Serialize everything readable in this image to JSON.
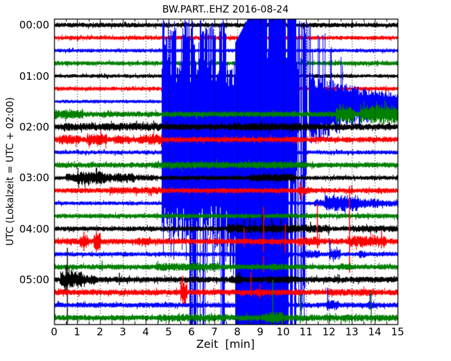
{
  "chart_data": {
    "type": "line",
    "subtype": "helicorder-dayplot",
    "title": "BW.PART..EHZ 2016-08-24",
    "xlabel": "Zeit  [min]",
    "ylabel": "UTC (Lokalzeit = UTC + 02:00)",
    "x_range": [
      0,
      15
    ],
    "x_ticks": [
      "0",
      "1",
      "2",
      "3",
      "4",
      "5",
      "6",
      "7",
      "8",
      "9",
      "10",
      "11",
      "12",
      "13",
      "14",
      "15"
    ],
    "minutes_per_row": 15,
    "rows_count": 24,
    "grid": "dotted-vertical-at-each-minute",
    "legend": "none",
    "trace_colors": [
      "#000000",
      "#ff0000",
      "#0000ff",
      "#008000"
    ],
    "hour_labels": [
      {
        "row": 0,
        "label": "00:00"
      },
      {
        "row": 4,
        "label": "01:00"
      },
      {
        "row": 8,
        "label": "02:00"
      },
      {
        "row": 12,
        "label": "03:00"
      },
      {
        "row": 16,
        "label": "04:00"
      },
      {
        "row": 20,
        "label": "05:00"
      }
    ],
    "rows": [
      {
        "t": "00:00",
        "c": 0,
        "base": 3.4
      },
      {
        "t": "00:15",
        "c": 1,
        "base": 3.0
      },
      {
        "t": "00:30",
        "c": 2,
        "base": 2.7
      },
      {
        "t": "00:45",
        "c": 3,
        "base": 3.3
      },
      {
        "t": "01:00",
        "c": 0,
        "base": 2.7,
        "spikes": [
          [
            12.6,
            6,
            6
          ]
        ]
      },
      {
        "t": "01:15",
        "c": 1,
        "base": 2.9
      },
      {
        "t": "01:30",
        "c": 2,
        "base": 2.6,
        "event": {
          "noise_until": 4.68,
          "phases": [
            {
              "from": 4.68,
              "to": 7.9,
              "kind": "burst",
              "up_clusters": [
                [
                  4.72,
                  5.28
                ],
                [
                  5.5,
                  6.15
                ],
                [
                  6.33,
                  7.05
                ],
                [
                  7.18,
                  7.5
                ]
              ],
              "down_clusters": [
                [
                  5.9,
                  6.2
                ],
                [
                  6.45,
                  6.6
                ],
                [
                  7.25,
                  7.4
                ]
              ]
            },
            {
              "from": 7.9,
              "to": 10.55,
              "kind": "solid",
              "top_ramp_until": 8.45,
              "gaps_top": [
                [
                  9.28,
                  9.35
                ],
                [
                  10.12,
                  10.17
                ]
              ],
              "gaps_bottom": [
                [
                  10.22,
                  10.28
                ],
                [
                  10.42,
                  10.47
                ]
              ]
            },
            {
              "from": 10.55,
              "to": 11.1,
              "kind": "ragged"
            },
            {
              "from": 11.1,
              "to": 15,
              "kind": "coda",
              "amp_up": 42,
              "amp_down": 60,
              "decay": 2.2,
              "floor_up": 6,
              "floor_down": 15,
              "spiky_until": 12.6
            }
          ]
        }
      },
      {
        "t": "01:45",
        "c": 3,
        "base": 4.2,
        "segs": [
          [
            0,
            1.25,
            7
          ],
          [
            12.3,
            13.1,
            13
          ],
          [
            13.35,
            15,
            14
          ]
        ]
      },
      {
        "t": "02:00",
        "c": 0,
        "base": 4.8,
        "segs": [
          [
            0.3,
            4.7,
            5.8
          ],
          [
            7.9,
            11.3,
            6
          ]
        ],
        "spikes": [
          [
            3.6,
            9,
            4
          ],
          [
            4.35,
            9,
            4
          ],
          [
            4.9,
            8,
            4
          ]
        ]
      },
      {
        "t": "02:15",
        "c": 1,
        "base": 4.2,
        "segs": [
          [
            0.2,
            1.1,
            7.5
          ],
          [
            1.4,
            2.3,
            8.5
          ],
          [
            2.6,
            3.3,
            7
          ],
          [
            3.7,
            4.7,
            8
          ]
        ]
      },
      {
        "t": "02:30",
        "c": 2,
        "base": 3.0
      },
      {
        "t": "02:45",
        "c": 3,
        "base": 4.0,
        "segs": [
          [
            4.4,
            7.6,
            5.5
          ],
          [
            8,
            11,
            5.5
          ]
        ]
      },
      {
        "t": "03:00",
        "c": 0,
        "base": 3.2,
        "segs": [
          [
            0.5,
            1,
            6
          ],
          [
            1,
            2.2,
            10
          ],
          [
            2.2,
            3.5,
            7
          ],
          [
            3.5,
            4.5,
            4.5
          ],
          [
            8.5,
            10.5,
            6
          ]
        ]
      },
      {
        "t": "03:15",
        "c": 1,
        "base": 3.8,
        "segs": [
          [
            2.4,
            4.7,
            5.5
          ],
          [
            10.6,
            11.2,
            6
          ]
        ],
        "spikes": [
          [
            10.75,
            13,
            13
          ],
          [
            13.0,
            8,
            6
          ]
        ]
      },
      {
        "t": "03:30",
        "c": 2,
        "base": 2.9,
        "segs": [
          [
            11.35,
            11.8,
            6
          ],
          [
            11.8,
            13.3,
            12
          ],
          [
            13.3,
            14.2,
            7
          ],
          [
            14.2,
            15,
            5
          ]
        ]
      },
      {
        "t": "03:45",
        "c": 3,
        "base": 3.6
      },
      {
        "t": "04:00",
        "c": 0,
        "base": 3.6,
        "segs": [
          [
            7.6,
            8.3,
            7
          ],
          [
            8.3,
            12,
            6
          ],
          [
            13,
            15,
            5
          ]
        ],
        "spikes": [
          [
            8.3,
            14,
            5
          ],
          [
            8.55,
            18,
            5
          ],
          [
            8.75,
            12,
            5
          ],
          [
            9.1,
            20,
            6
          ],
          [
            9.5,
            16,
            5
          ],
          [
            9.9,
            14,
            5
          ],
          [
            10.3,
            18,
            6
          ],
          [
            10.55,
            12,
            5
          ],
          [
            11.2,
            10,
            5
          ]
        ]
      },
      {
        "t": "04:15",
        "c": 1,
        "base": 4.4,
        "segs": [
          [
            1.1,
            1.5,
            10
          ],
          [
            1.7,
            2.0,
            13
          ],
          [
            3.5,
            4.2,
            6
          ],
          [
            10.6,
            11.6,
            7
          ],
          [
            12.8,
            14.5,
            8
          ]
        ],
        "spikes": [
          [
            1.3,
            14,
            14
          ],
          [
            1.85,
            15,
            15
          ],
          [
            8.3,
            20,
            8
          ],
          [
            9.15,
            50,
            44
          ],
          [
            10.1,
            25,
            20
          ],
          [
            11.5,
            55,
            10
          ],
          [
            12.9,
            80,
            45
          ],
          [
            14.3,
            15,
            10
          ]
        ]
      },
      {
        "t": "04:30",
        "c": 2,
        "base": 3.3,
        "segs": [
          [
            10.8,
            11.6,
            6.5
          ],
          [
            12.0,
            12.5,
            8
          ],
          [
            13.3,
            13.6,
            6
          ]
        ],
        "spikes": [
          [
            12.05,
            20,
            8
          ]
        ]
      },
      {
        "t": "04:45",
        "c": 3,
        "base": 4.0,
        "segs": [
          [
            4.4,
            7.2,
            6
          ],
          [
            9.4,
            10.2,
            5.5
          ],
          [
            12.4,
            13,
            5.5
          ]
        ],
        "spikes": [
          [
            2.1,
            9,
            6
          ]
        ]
      },
      {
        "t": "05:00",
        "c": 0,
        "base": 4.4,
        "segs": [
          [
            0.25,
            1.25,
            12
          ],
          [
            1.25,
            1.8,
            7
          ],
          [
            7.7,
            8.2,
            7
          ],
          [
            9.3,
            10.6,
            6
          ]
        ],
        "spikes": [
          [
            0.52,
            20,
            20
          ],
          [
            0.58,
            46,
            64
          ],
          [
            0.75,
            14,
            10
          ],
          [
            2.85,
            10,
            8
          ],
          [
            12.4,
            8,
            6
          ]
        ]
      },
      {
        "t": "05:15",
        "c": 1,
        "base": 4.4,
        "segs": [
          [
            5.5,
            5.8,
            18
          ],
          [
            8.8,
            9.2,
            6
          ],
          [
            12,
            14,
            5.5
          ]
        ],
        "spikes": [
          [
            5.62,
            24,
            22
          ],
          [
            8.6,
            30,
            6
          ],
          [
            9.0,
            12,
            8
          ]
        ]
      },
      {
        "t": "05:30",
        "c": 2,
        "base": 3.8,
        "segs": [
          [
            11.9,
            12.4,
            8
          ],
          [
            13.7,
            13.95,
            7
          ]
        ],
        "spikes": [
          [
            11.95,
            25,
            8
          ],
          [
            13.8,
            16,
            6
          ]
        ]
      },
      {
        "t": "05:45",
        "c": 3,
        "base": 4.1,
        "segs": [
          [
            4.5,
            7.5,
            5.5
          ],
          [
            8,
            15,
            5
          ],
          [
            9.2,
            10,
            9
          ]
        ],
        "spikes": [
          [
            9.55,
            55,
            16
          ],
          [
            10.75,
            35,
            8
          ],
          [
            13.85,
            40,
            8
          ]
        ]
      }
    ]
  }
}
